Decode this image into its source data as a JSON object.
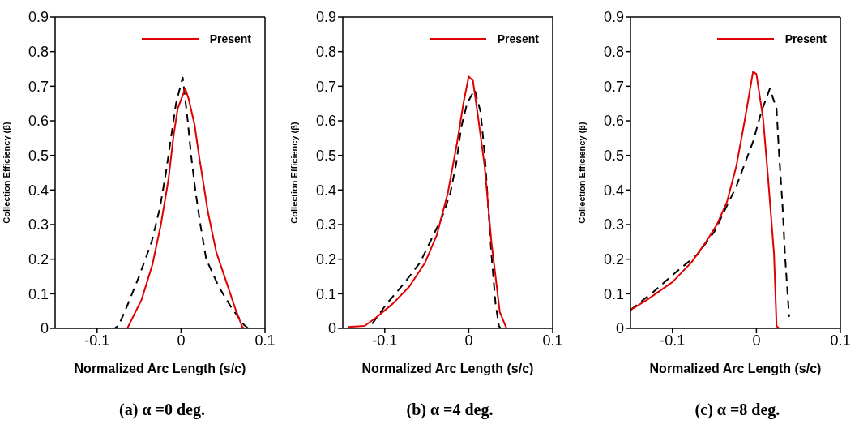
{
  "chart_data": [
    {
      "type": "line",
      "title": "(a) α =0 deg.",
      "xlabel": "Normalized Arc Length (s/c)",
      "ylabel": "Collection Efficiency (β)",
      "xlim": [
        -0.15,
        0.1
      ],
      "xticks": [
        -0.1,
        0,
        0.1
      ],
      "ylim": [
        0,
        0.9
      ],
      "yticks": [
        0,
        0.1,
        0.2,
        0.3,
        0.4,
        0.5,
        0.6,
        0.7,
        0.8,
        0.9
      ],
      "legend": "top right",
      "series": [
        {
          "color": "#000000",
          "line_style": "dashed",
          "x": [
            -0.15,
            -0.079,
            -0.074,
            -0.065,
            -0.05,
            -0.035,
            -0.025,
            -0.018,
            -0.012,
            -0.006,
            0.002,
            0.008,
            0.012,
            0.017,
            0.023,
            0.03,
            0.045,
            0.06,
            0.075,
            0.08,
            0.088
          ],
          "values": [
            0,
            0,
            0.01,
            0.06,
            0.15,
            0.25,
            0.35,
            0.45,
            0.55,
            0.65,
            0.725,
            0.6,
            0.5,
            0.4,
            0.3,
            0.2,
            0.12,
            0.06,
            0.01,
            0,
            0
          ]
        },
        {
          "name": "Present",
          "color": "#e00000",
          "line_style": "solid",
          "x": [
            -0.064,
            -0.047,
            -0.034,
            -0.024,
            -0.015,
            -0.009,
            -0.004,
            0.005,
            0.009,
            0.016,
            0.022,
            0.032,
            0.042,
            0.055,
            0.065,
            0.073,
            0.075
          ],
          "values": [
            0,
            0.083,
            0.185,
            0.3,
            0.43,
            0.555,
            0.635,
            0.693,
            0.664,
            0.59,
            0.49,
            0.337,
            0.22,
            0.127,
            0.054,
            0.004,
            0
          ]
        }
      ]
    },
    {
      "type": "line",
      "title": "(b) α =4 deg.",
      "xlabel": "Normalized Arc Length (s/c)",
      "ylabel": "Collection Efficiency (β)",
      "xlim": [
        -0.15,
        0.1
      ],
      "xticks": [
        -0.1,
        0,
        0.1
      ],
      "ylim": [
        0,
        0.9
      ],
      "yticks": [
        0,
        0.1,
        0.2,
        0.3,
        0.4,
        0.5,
        0.6,
        0.7,
        0.8,
        0.9
      ],
      "legend": "top right",
      "series": [
        {
          "color": "#000000",
          "line_style": "dashed",
          "x": [
            -0.145,
            -0.119,
            -0.098,
            -0.078,
            -0.058,
            -0.045,
            -0.032,
            -0.022,
            -0.015,
            -0.009,
            -0.002,
            0.007,
            0.014,
            0.019,
            0.023,
            0.027,
            0.032,
            0.036,
            0.038,
            0.085
          ],
          "values": [
            0,
            0,
            0.07,
            0.127,
            0.19,
            0.255,
            0.32,
            0.39,
            0.475,
            0.58,
            0.65,
            0.69,
            0.627,
            0.504,
            0.36,
            0.215,
            0.07,
            0.007,
            0,
            0
          ]
        },
        {
          "name": "Present",
          "color": "#e00000",
          "line_style": "solid",
          "x": [
            -0.144,
            -0.124,
            -0.111,
            -0.091,
            -0.071,
            -0.052,
            -0.038,
            -0.025,
            -0.014,
            -0.006,
            0,
            0.005,
            0.011,
            0.019,
            0.027,
            0.037,
            0.045
          ],
          "values": [
            0.004,
            0.007,
            0.03,
            0.07,
            0.12,
            0.19,
            0.27,
            0.39,
            0.535,
            0.655,
            0.728,
            0.716,
            0.613,
            0.468,
            0.25,
            0.047,
            0
          ]
        }
      ]
    },
    {
      "type": "line",
      "title": "(c) α =8 deg.",
      "xlabel": "Normalized Arc Length (s/c)",
      "ylabel": "Collection Efficiency (β)",
      "xlim": [
        -0.15,
        0.1
      ],
      "xticks": [
        -0.1,
        0,
        0.1
      ],
      "ylim": [
        0,
        0.9
      ],
      "yticks": [
        0,
        0.1,
        0.2,
        0.3,
        0.4,
        0.5,
        0.6,
        0.7,
        0.8,
        0.9
      ],
      "legend": "top right",
      "series": [
        {
          "color": "#000000",
          "line_style": "dashed",
          "x": [
            -0.15,
            -0.123,
            -0.097,
            -0.07,
            -0.05,
            -0.037,
            -0.024,
            -0.014,
            -0.004,
            0.006,
            0.016,
            0.024,
            0.027,
            0.031,
            0.034,
            0.039
          ],
          "values": [
            0.053,
            0.105,
            0.16,
            0.214,
            0.28,
            0.345,
            0.41,
            0.475,
            0.54,
            0.627,
            0.693,
            0.635,
            0.504,
            0.36,
            0.214,
            0.033
          ]
        },
        {
          "name": "Present",
          "color": "#e00000",
          "line_style": "solid",
          "x": [
            -0.15,
            -0.13,
            -0.1,
            -0.077,
            -0.06,
            -0.047,
            -0.035,
            -0.024,
            -0.014,
            -0.004,
            0,
            0.008,
            0.014,
            0.021,
            0.024,
            0.027
          ],
          "values": [
            0.053,
            0.083,
            0.134,
            0.192,
            0.25,
            0.3,
            0.366,
            0.468,
            0.6,
            0.742,
            0.735,
            0.606,
            0.432,
            0.214,
            0.007,
            0
          ]
        }
      ]
    }
  ]
}
